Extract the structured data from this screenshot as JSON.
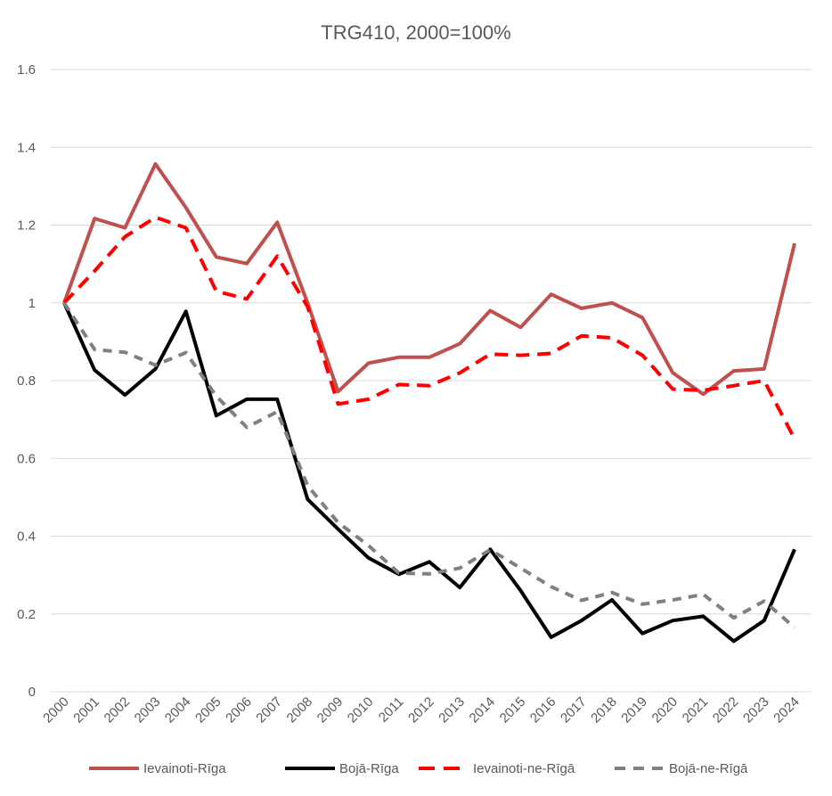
{
  "chart_data": {
    "type": "line",
    "title": "TRG410, 2000=100%",
    "xlabel": "",
    "ylabel": "",
    "x": [
      "2000",
      "2001",
      "2002",
      "2003",
      "2004",
      "2005",
      "2006",
      "2007",
      "2008",
      "2009",
      "2010",
      "2011",
      "2012",
      "2013",
      "2014",
      "2015",
      "2016",
      "2017",
      "2018",
      "2019",
      "2020",
      "2021",
      "2022",
      "2023",
      "2024"
    ],
    "ylim": [
      0,
      1.6
    ],
    "yticks": [
      "0",
      "0.2",
      "0.4",
      "0.6",
      "0.8",
      "1",
      "1.2",
      "1.4",
      "1.6"
    ],
    "grid": true,
    "legend_position": "bottom",
    "series": [
      {
        "name": "Ievainoti-Rīga",
        "color": "#c0504d",
        "dash": "solid",
        "values": [
          1.0,
          1.217,
          1.193,
          1.357,
          1.245,
          1.118,
          1.101,
          1.207,
          1.0,
          0.772,
          0.845,
          0.86,
          0.86,
          0.895,
          0.98,
          0.937,
          1.022,
          0.986,
          1.0,
          0.962,
          0.82,
          0.765,
          0.825,
          0.83,
          1.153
        ]
      },
      {
        "name": "Bojā-Rīga",
        "color": "#000000",
        "dash": "solid",
        "values": [
          1.0,
          0.827,
          0.763,
          0.83,
          0.978,
          0.71,
          0.752,
          0.752,
          0.495,
          0.418,
          0.344,
          0.302,
          0.334,
          0.268,
          0.366,
          0.26,
          0.14,
          0.183,
          0.236,
          0.15,
          0.183,
          0.194,
          0.13,
          0.183,
          0.366
        ]
      },
      {
        "name": "Ievainoti-ne-Rīgā",
        "color": "#ff0000",
        "dash": "long",
        "values": [
          1.0,
          1.082,
          1.17,
          1.22,
          1.193,
          1.03,
          1.01,
          1.12,
          0.99,
          0.74,
          0.752,
          0.79,
          0.787,
          0.82,
          0.868,
          0.865,
          0.87,
          0.915,
          0.91,
          0.865,
          0.778,
          0.775,
          0.787,
          0.8,
          0.65
        ]
      },
      {
        "name": "Bojā-ne-Rīgā",
        "color": "#808080",
        "dash": "short",
        "values": [
          1.0,
          0.88,
          0.873,
          0.84,
          0.872,
          0.76,
          0.68,
          0.72,
          0.53,
          0.435,
          0.376,
          0.305,
          0.303,
          0.318,
          0.365,
          0.318,
          0.27,
          0.235,
          0.255,
          0.225,
          0.236,
          0.25,
          0.19,
          0.233,
          0.165
        ]
      }
    ]
  }
}
